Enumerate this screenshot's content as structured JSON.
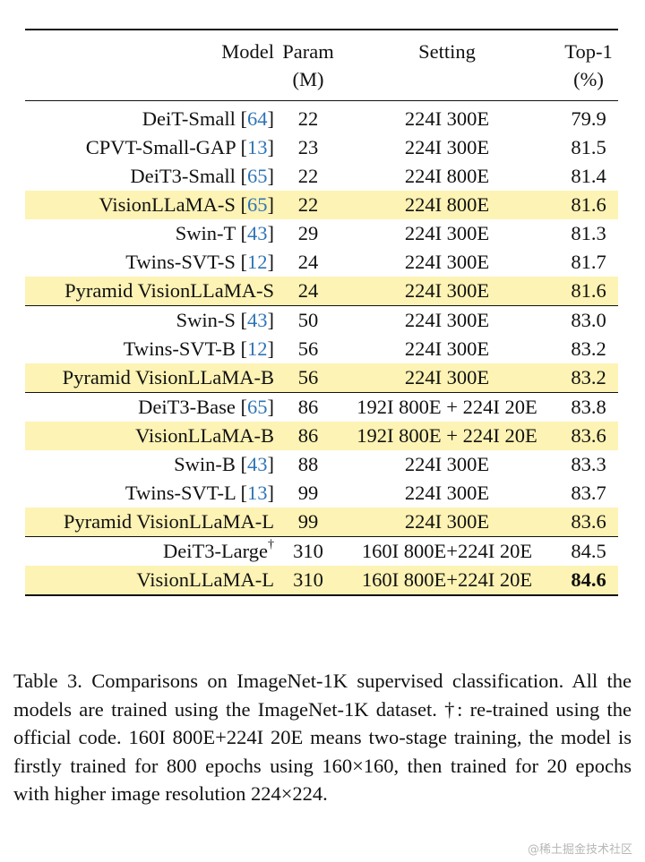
{
  "table": {
    "headers": {
      "model": "Model",
      "param": "Param",
      "param_unit": "(M)",
      "setting": "Setting",
      "top1": "Top-1",
      "top1_unit": "(%)"
    },
    "groups": [
      [
        {
          "model": "DeiT-Small",
          "ref": "64",
          "param": "22",
          "setting": "224I 300E",
          "top1": "79.9",
          "highlight": false
        },
        {
          "model": "CPVT-Small-GAP",
          "ref": "13",
          "param": "23",
          "setting": "224I 300E",
          "top1": "81.5",
          "highlight": false
        },
        {
          "model": "DeiT3-Small",
          "ref": "65",
          "param": "22",
          "setting": "224I 800E",
          "top1": "81.4",
          "highlight": false
        },
        {
          "model": "VisionLLaMA-S",
          "ref": "65",
          "param": "22",
          "setting": "224I 800E",
          "top1": "81.6",
          "highlight": true
        },
        {
          "model": "Swin-T",
          "ref": "43",
          "param": "29",
          "setting": "224I 300E",
          "top1": "81.3",
          "highlight": false
        },
        {
          "model": "Twins-SVT-S",
          "ref": "12",
          "param": "24",
          "setting": "224I 300E",
          "top1": "81.7",
          "highlight": false
        },
        {
          "model": "Pyramid VisionLLaMA-S",
          "ref": "",
          "param": "24",
          "setting": "224I 300E",
          "top1": "81.6",
          "highlight": true
        }
      ],
      [
        {
          "model": "Swin-S",
          "ref": "43",
          "param": "50",
          "setting": "224I 300E",
          "top1": "83.0",
          "highlight": false
        },
        {
          "model": "Twins-SVT-B",
          "ref": "12",
          "param": "56",
          "setting": "224I 300E",
          "top1": "83.2",
          "highlight": false
        },
        {
          "model": "Pyramid VisionLLaMA-B",
          "ref": "",
          "param": "56",
          "setting": "224I 300E",
          "top1": "83.2",
          "highlight": true
        }
      ],
      [
        {
          "model": "DeiT3-Base",
          "ref": "65",
          "param": "86",
          "setting": "192I 800E + 224I 20E",
          "top1": "83.8",
          "highlight": false
        },
        {
          "model": "VisionLLaMA-B",
          "ref": "",
          "param": "86",
          "setting": "192I 800E + 224I 20E",
          "top1": "83.6",
          "highlight": true
        },
        {
          "model": "Swin-B",
          "ref": "43",
          "param": "88",
          "setting": "224I 300E",
          "top1": "83.3",
          "highlight": false
        },
        {
          "model": "Twins-SVT-L",
          "ref": "13",
          "param": "99",
          "setting": "224I 300E",
          "top1": "83.7",
          "highlight": false
        },
        {
          "model": "Pyramid VisionLLaMA-L",
          "ref": "",
          "param": "99",
          "setting": "224I 300E",
          "top1": "83.6",
          "highlight": true
        }
      ],
      [
        {
          "model": "DeiT3-Large",
          "ref": "",
          "sup": "†",
          "param": "310",
          "setting": "160I 800E+224I 20E",
          "top1": "84.5",
          "highlight": false
        },
        {
          "model": "VisionLLaMA-L",
          "ref": "",
          "param": "310",
          "setting": "160I 800E+224I 20E",
          "top1": "84.6",
          "highlight": true,
          "bold_top1": true
        }
      ]
    ]
  },
  "caption": "Table 3. Comparisons on ImageNet-1K supervised classification. All the models are trained using the ImageNet-1K dataset. †: re-trained using the official code. 160I 800E+224I 20E means two-stage training, the model is firstly trained for 800 epochs using 160×160, then trained for 20 epochs with higher image resolution 224×224.",
  "watermark": "@稀土掘金技术社区"
}
